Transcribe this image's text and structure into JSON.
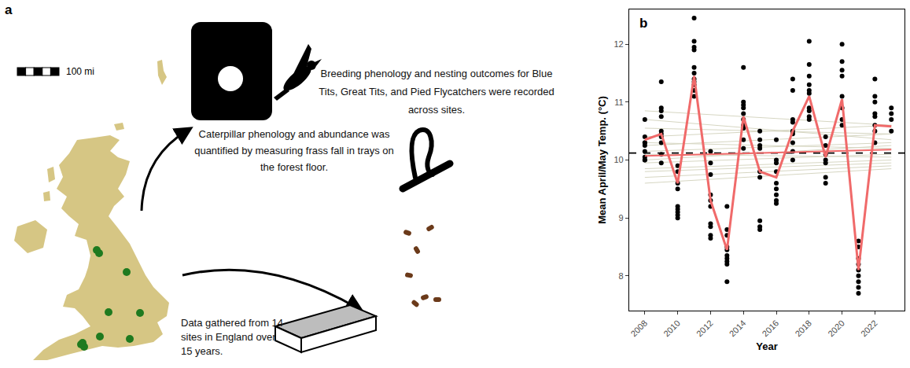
{
  "panel_a": {
    "label": "a",
    "scale_bar": "100 mi",
    "texts": {
      "birds": "Breeding phenology and nesting outcomes for Blue Tits, Great Tits, and Pied Flycatchers were recorded across sites.",
      "caterpillars": "Caterpillar phenology and abundance was quantified by measuring frass fall in trays on the forest floor.",
      "sites": "Data gathered from 14 sites in England over 15 years."
    }
  },
  "chart_data": {
    "label": "b",
    "type": "scatter",
    "xlabel": "Year",
    "ylabel": "Mean April/May Temp. (°C)",
    "xlim": [
      2007.05,
      2023.8
    ],
    "ylim": [
      7.4,
      12.6
    ],
    "xticks": [
      2008,
      2010,
      2012,
      2014,
      2016,
      2018,
      2020,
      2022
    ],
    "yticks": [
      8,
      9,
      10,
      11,
      12
    ],
    "grid": false,
    "series": [
      {
        "type": "line",
        "color": "#d6d6c2",
        "x": [
          2008,
          2023
        ],
        "values": [
          10.85,
          10.6
        ]
      },
      {
        "type": "line",
        "color": "#d6d6c2",
        "x": [
          2008,
          2023
        ],
        "values": [
          10.7,
          10.35
        ]
      },
      {
        "type": "line",
        "color": "#d6d6c2",
        "x": [
          2008,
          2023
        ],
        "values": [
          10.55,
          10.45
        ]
      },
      {
        "type": "line",
        "color": "#d6d6c2",
        "x": [
          2008,
          2023
        ],
        "values": [
          10.4,
          10.6
        ]
      },
      {
        "type": "line",
        "color": "#d6d6c2",
        "x": [
          2008,
          2023
        ],
        "values": [
          10.3,
          10.2
        ]
      },
      {
        "type": "line",
        "color": "#d6d6c2",
        "x": [
          2008,
          2023
        ],
        "values": [
          10.25,
          10.45
        ]
      },
      {
        "type": "line",
        "color": "#d6d6c2",
        "x": [
          2008,
          2023
        ],
        "values": [
          10.15,
          10.3
        ]
      },
      {
        "type": "line",
        "color": "#d6d6c2",
        "x": [
          2008,
          2023
        ],
        "values": [
          10.1,
          10.05
        ]
      },
      {
        "type": "line",
        "color": "#d6d6c2",
        "x": [
          2008,
          2023
        ],
        "values": [
          10.0,
          10.25
        ]
      },
      {
        "type": "line",
        "color": "#d6d6c2",
        "x": [
          2008,
          2023
        ],
        "values": [
          9.95,
          10.1
        ]
      },
      {
        "type": "line",
        "color": "#d6d6c2",
        "x": [
          2008,
          2023
        ],
        "values": [
          9.85,
          10.0
        ]
      },
      {
        "type": "line",
        "color": "#d6d6c2",
        "x": [
          2008,
          2023
        ],
        "values": [
          9.8,
          9.95
        ]
      },
      {
        "type": "line",
        "color": "#d6d6c2",
        "x": [
          2008,
          2023
        ],
        "values": [
          9.7,
          9.9
        ]
      },
      {
        "type": "line",
        "color": "#d6d6c2",
        "x": [
          2008,
          2023
        ],
        "values": [
          9.6,
          9.85
        ]
      },
      {
        "type": "scatter",
        "color": "#000000",
        "marker": "circle",
        "x": [
          2008,
          2008,
          2008,
          2008,
          2008,
          2008,
          2008,
          2008,
          2008
        ],
        "values": [
          10.7,
          10.4,
          10.3,
          10.3,
          10.25,
          10.15,
          10.05,
          10.0,
          10.0
        ]
      },
      {
        "type": "scatter",
        "color": "#000000",
        "marker": "circle",
        "x": [
          2009,
          2009,
          2009,
          2009,
          2009,
          2009,
          2009,
          2009,
          2009,
          2009
        ],
        "values": [
          11.35,
          10.9,
          10.85,
          10.75,
          10.5,
          10.45,
          10.4,
          10.3,
          10.1,
          9.95
        ]
      },
      {
        "type": "scatter",
        "color": "#000000",
        "marker": "circle",
        "x": [
          2010,
          2010,
          2010,
          2010,
          2010,
          2010,
          2010,
          2010,
          2010
        ],
        "values": [
          9.9,
          9.8,
          9.6,
          9.5,
          9.2,
          9.15,
          9.1,
          9.05,
          9.0
        ]
      },
      {
        "type": "scatter",
        "color": "#000000",
        "marker": "circle",
        "x": [
          2011,
          2011,
          2011,
          2011,
          2011,
          2011,
          2011,
          2011,
          2011,
          2011,
          2011
        ],
        "values": [
          12.45,
          12.05,
          11.95,
          11.9,
          11.6,
          11.5,
          11.4,
          11.35,
          11.3,
          11.2,
          11.1
        ]
      },
      {
        "type": "scatter",
        "color": "#000000",
        "marker": "circle",
        "x": [
          2012,
          2012,
          2012,
          2012,
          2012,
          2012,
          2012,
          2012,
          2012,
          2012
        ],
        "values": [
          10.15,
          9.95,
          9.75,
          9.4,
          9.3,
          9.2,
          8.9,
          8.85,
          8.7,
          8.65
        ]
      },
      {
        "type": "scatter",
        "color": "#000000",
        "marker": "circle",
        "x": [
          2013,
          2013,
          2013,
          2013,
          2013,
          2013,
          2013,
          2013,
          2013,
          2013
        ],
        "values": [
          9.2,
          8.8,
          8.7,
          8.5,
          8.45,
          8.35,
          8.3,
          8.25,
          8.2,
          7.9
        ]
      },
      {
        "type": "scatter",
        "color": "#000000",
        "marker": "circle",
        "x": [
          2014,
          2014,
          2014,
          2014,
          2014,
          2014,
          2014,
          2014,
          2014,
          2014
        ],
        "values": [
          11.6,
          11.0,
          10.95,
          10.9,
          10.8,
          10.7,
          10.6,
          10.55,
          10.35,
          10.2
        ]
      },
      {
        "type": "scatter",
        "color": "#000000",
        "marker": "circle",
        "x": [
          2015,
          2015,
          2015,
          2015,
          2015,
          2015,
          2015,
          2015,
          2015
        ],
        "values": [
          10.5,
          10.35,
          10.25,
          10.2,
          9.8,
          9.7,
          8.95,
          8.85,
          8.8
        ]
      },
      {
        "type": "scatter",
        "color": "#000000",
        "marker": "circle",
        "x": [
          2016,
          2016,
          2016,
          2016,
          2016,
          2016,
          2016,
          2016,
          2016
        ],
        "values": [
          10.35,
          10.0,
          9.95,
          9.8,
          9.6,
          9.5,
          9.4,
          9.3,
          9.25
        ]
      },
      {
        "type": "scatter",
        "color": "#000000",
        "marker": "circle",
        "x": [
          2017,
          2017,
          2017,
          2017,
          2017,
          2017,
          2017,
          2017,
          2017
        ],
        "values": [
          11.4,
          11.2,
          10.7,
          10.65,
          10.5,
          10.45,
          10.3,
          10.15,
          10.0
        ]
      },
      {
        "type": "scatter",
        "color": "#000000",
        "marker": "circle",
        "x": [
          2018,
          2018,
          2018,
          2018,
          2018,
          2018,
          2018,
          2018,
          2018,
          2018
        ],
        "values": [
          12.05,
          11.65,
          11.45,
          11.3,
          11.2,
          11.15,
          10.9,
          10.85,
          10.75,
          10.7
        ]
      },
      {
        "type": "scatter",
        "color": "#000000",
        "marker": "circle",
        "x": [
          2019,
          2019,
          2019,
          2019,
          2019,
          2019,
          2019
        ],
        "values": [
          10.4,
          10.25,
          10.1,
          10.0,
          9.95,
          9.7,
          9.6
        ]
      },
      {
        "type": "scatter",
        "color": "#000000",
        "marker": "circle",
        "x": [
          2020,
          2020,
          2020,
          2020,
          2020,
          2020,
          2020,
          2020
        ],
        "values": [
          12.0,
          11.7,
          11.55,
          11.45,
          11.1,
          10.9,
          10.7,
          10.6
        ]
      },
      {
        "type": "scatter",
        "color": "#000000",
        "marker": "circle",
        "x": [
          2021,
          2021,
          2021,
          2021,
          2021,
          2021,
          2021,
          2021,
          2021
        ],
        "values": [
          8.6,
          8.5,
          8.3,
          8.2,
          8.1,
          8.0,
          7.9,
          7.8,
          7.7
        ]
      },
      {
        "type": "scatter",
        "color": "#000000",
        "marker": "circle",
        "x": [
          2022,
          2022,
          2022,
          2022,
          2022,
          2022,
          2022,
          2022
        ],
        "values": [
          11.4,
          11.1,
          11.0,
          10.8,
          10.75,
          10.6,
          10.5,
          10.3
        ]
      },
      {
        "type": "scatter",
        "color": "#000000",
        "marker": "circle",
        "x": [
          2023,
          2023,
          2023,
          2023
        ],
        "values": [
          10.9,
          10.8,
          10.7,
          10.5
        ]
      },
      {
        "type": "hline",
        "color": "#000000",
        "line_style": "dashed",
        "values": [
          10.12
        ]
      },
      {
        "type": "line",
        "color": "#f06a6a",
        "x": [
          2008,
          2023
        ],
        "values": [
          10.07,
          10.18
        ]
      },
      {
        "type": "line",
        "color": "#f06a6a",
        "x": [
          2008,
          2009,
          2010,
          2011,
          2012,
          2013,
          2014,
          2015,
          2016,
          2017,
          2018,
          2019,
          2020,
          2021,
          2022,
          2023
        ],
        "values": [
          10.35,
          10.45,
          9.6,
          11.45,
          9.3,
          8.45,
          10.75,
          9.8,
          9.7,
          10.5,
          11.1,
          10.05,
          11.05,
          8.1,
          10.6,
          10.58
        ]
      }
    ]
  }
}
